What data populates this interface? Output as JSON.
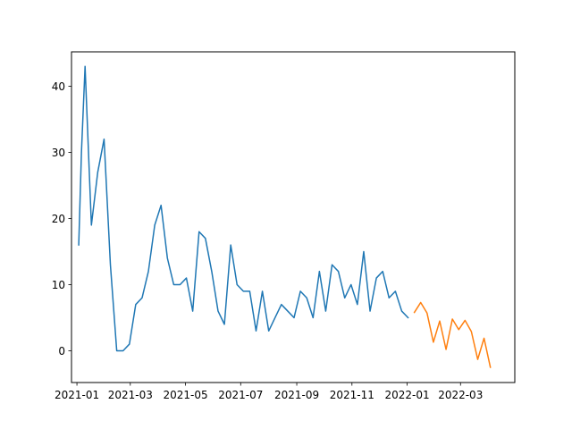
{
  "chart_data": {
    "type": "line",
    "title": "",
    "xlabel": "",
    "ylabel": "",
    "grid": false,
    "x_axis": {
      "type": "date",
      "range": [
        "2020-12-26",
        "2022-04-30"
      ],
      "ticks": [
        {
          "value": "2021-01-01",
          "label": "2021-01"
        },
        {
          "value": "2021-03-01",
          "label": "2021-03"
        },
        {
          "value": "2021-05-01",
          "label": "2021-05"
        },
        {
          "value": "2021-07-01",
          "label": "2021-07"
        },
        {
          "value": "2021-09-01",
          "label": "2021-09"
        },
        {
          "value": "2021-11-01",
          "label": "2021-11"
        },
        {
          "value": "2022-01-01",
          "label": "2022-01"
        },
        {
          "value": "2022-03-01",
          "label": "2022-03"
        }
      ]
    },
    "y_axis": {
      "range": [
        -4.8,
        45.2
      ],
      "ticks": [
        {
          "value": 0,
          "label": "0"
        },
        {
          "value": 10,
          "label": "10"
        },
        {
          "value": 20,
          "label": "20"
        },
        {
          "value": 30,
          "label": "30"
        },
        {
          "value": 40,
          "label": "40"
        }
      ]
    },
    "series": [
      {
        "color": "#1f77b4",
        "points": [
          [
            "2021-01-03",
            16
          ],
          [
            "2021-01-06",
            30
          ],
          [
            "2021-01-10",
            43
          ],
          [
            "2021-01-17",
            19
          ],
          [
            "2021-01-24",
            27
          ],
          [
            "2021-01-31",
            32
          ],
          [
            "2021-02-07",
            13
          ],
          [
            "2021-02-14",
            0
          ],
          [
            "2021-02-21",
            0
          ],
          [
            "2021-02-28",
            1
          ],
          [
            "2021-03-07",
            7
          ],
          [
            "2021-03-14",
            8
          ],
          [
            "2021-03-21",
            12
          ],
          [
            "2021-03-28",
            19
          ],
          [
            "2021-04-04",
            22
          ],
          [
            "2021-04-11",
            14
          ],
          [
            "2021-04-18",
            10
          ],
          [
            "2021-04-25",
            10
          ],
          [
            "2021-05-02",
            11
          ],
          [
            "2021-05-09",
            6
          ],
          [
            "2021-05-16",
            18
          ],
          [
            "2021-05-23",
            17
          ],
          [
            "2021-05-30",
            12
          ],
          [
            "2021-06-06",
            6
          ],
          [
            "2021-06-13",
            4
          ],
          [
            "2021-06-20",
            16
          ],
          [
            "2021-06-27",
            10
          ],
          [
            "2021-07-04",
            9
          ],
          [
            "2021-07-11",
            9
          ],
          [
            "2021-07-18",
            3
          ],
          [
            "2021-07-25",
            9
          ],
          [
            "2021-08-01",
            3
          ],
          [
            "2021-08-08",
            5
          ],
          [
            "2021-08-15",
            7
          ],
          [
            "2021-08-22",
            6
          ],
          [
            "2021-08-29",
            5
          ],
          [
            "2021-09-05",
            9
          ],
          [
            "2021-09-12",
            8
          ],
          [
            "2021-09-19",
            5
          ],
          [
            "2021-09-26",
            12
          ],
          [
            "2021-10-03",
            6
          ],
          [
            "2021-10-10",
            13
          ],
          [
            "2021-10-17",
            12
          ],
          [
            "2021-10-24",
            8
          ],
          [
            "2021-10-31",
            10
          ],
          [
            "2021-11-07",
            7
          ],
          [
            "2021-11-14",
            15
          ],
          [
            "2021-11-21",
            6
          ],
          [
            "2021-11-28",
            11
          ],
          [
            "2021-12-05",
            12
          ],
          [
            "2021-12-12",
            8
          ],
          [
            "2021-12-19",
            9
          ],
          [
            "2021-12-26",
            6
          ],
          [
            "2022-01-02",
            5
          ]
        ]
      },
      {
        "color": "#ff7f0e",
        "points": [
          [
            "2022-01-09",
            5.8
          ],
          [
            "2022-01-16",
            7.3
          ],
          [
            "2022-01-23",
            5.7
          ],
          [
            "2022-01-30",
            1.3
          ],
          [
            "2022-02-06",
            4.5
          ],
          [
            "2022-02-13",
            0.2
          ],
          [
            "2022-02-20",
            4.8
          ],
          [
            "2022-02-27",
            3.2
          ],
          [
            "2022-03-06",
            4.6
          ],
          [
            "2022-03-13",
            2.9
          ],
          [
            "2022-03-20",
            -1.3
          ],
          [
            "2022-03-27",
            1.9
          ],
          [
            "2022-04-03",
            -2.5
          ]
        ]
      }
    ]
  }
}
